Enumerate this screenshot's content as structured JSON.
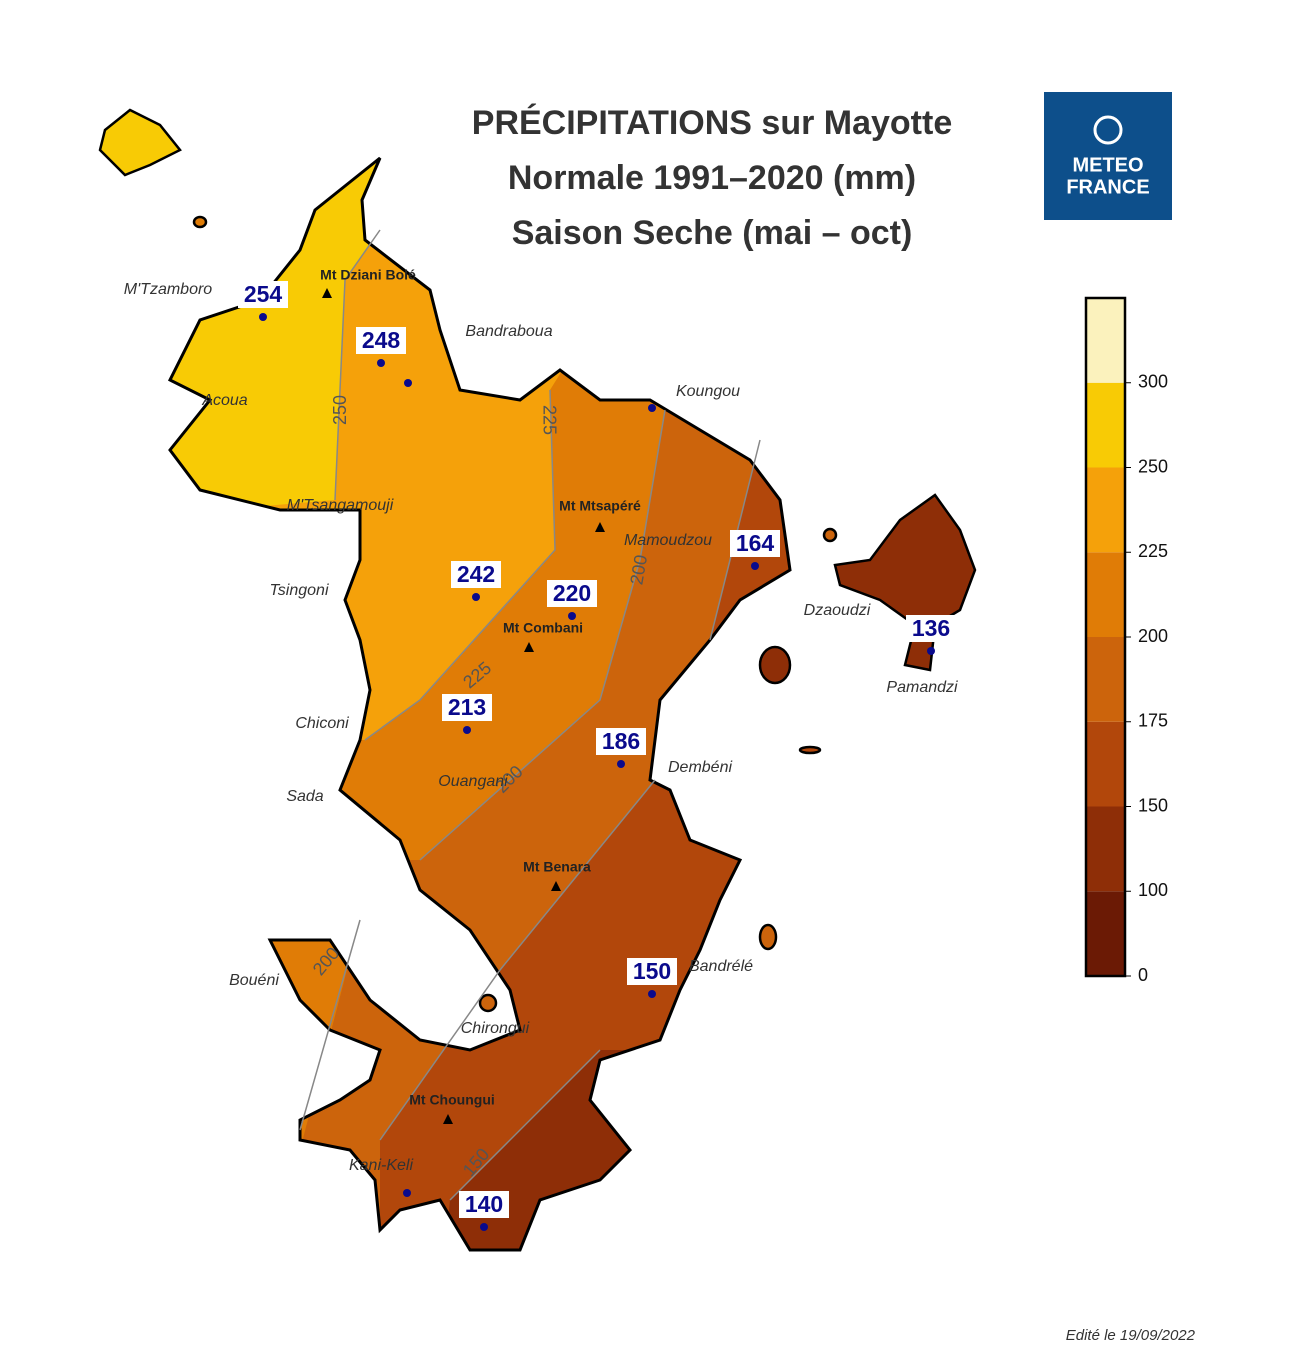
{
  "title": [
    "PRÉCIPITATIONS sur Mayotte",
    "Normale 1991–2020 (mm)",
    "Saison Seche (mai – oct)"
  ],
  "logo": [
    "METEO",
    "FRANCE"
  ],
  "legend": {
    "ticks": [
      0,
      100,
      150,
      175,
      200,
      225,
      250,
      300
    ],
    "colors": [
      "#6b1a05",
      "#8e2e07",
      "#b2470b",
      "#cc640c",
      "#e07c06",
      "#f5a10a",
      "#f8cb05",
      "#fbf2bd"
    ]
  },
  "stations": [
    254,
    248,
    242,
    220,
    213,
    186,
    164,
    136,
    150,
    140
  ],
  "places": [
    "M'Tzamboro",
    "Bandraboua",
    "Acoua",
    "Koungou",
    "M'Tsangamouji",
    "Mamoudzou",
    "Tsingoni",
    "Dzaoudzi",
    "Pamandzi",
    "Chiconi",
    "Sada",
    "Ouangani",
    "Dembéni",
    "Bouéni",
    "Bandrélé",
    "Chirongui",
    "Kani-Keli"
  ],
  "summits": [
    "Mt Dziani Bolé",
    "Mt Mtsapéré",
    "Mt Combani",
    "Mt Benara",
    "Mt Choungui"
  ],
  "contours": [
    250,
    225,
    225,
    200,
    200,
    200,
    150
  ],
  "edited": "Edité le 19/09/2022"
}
